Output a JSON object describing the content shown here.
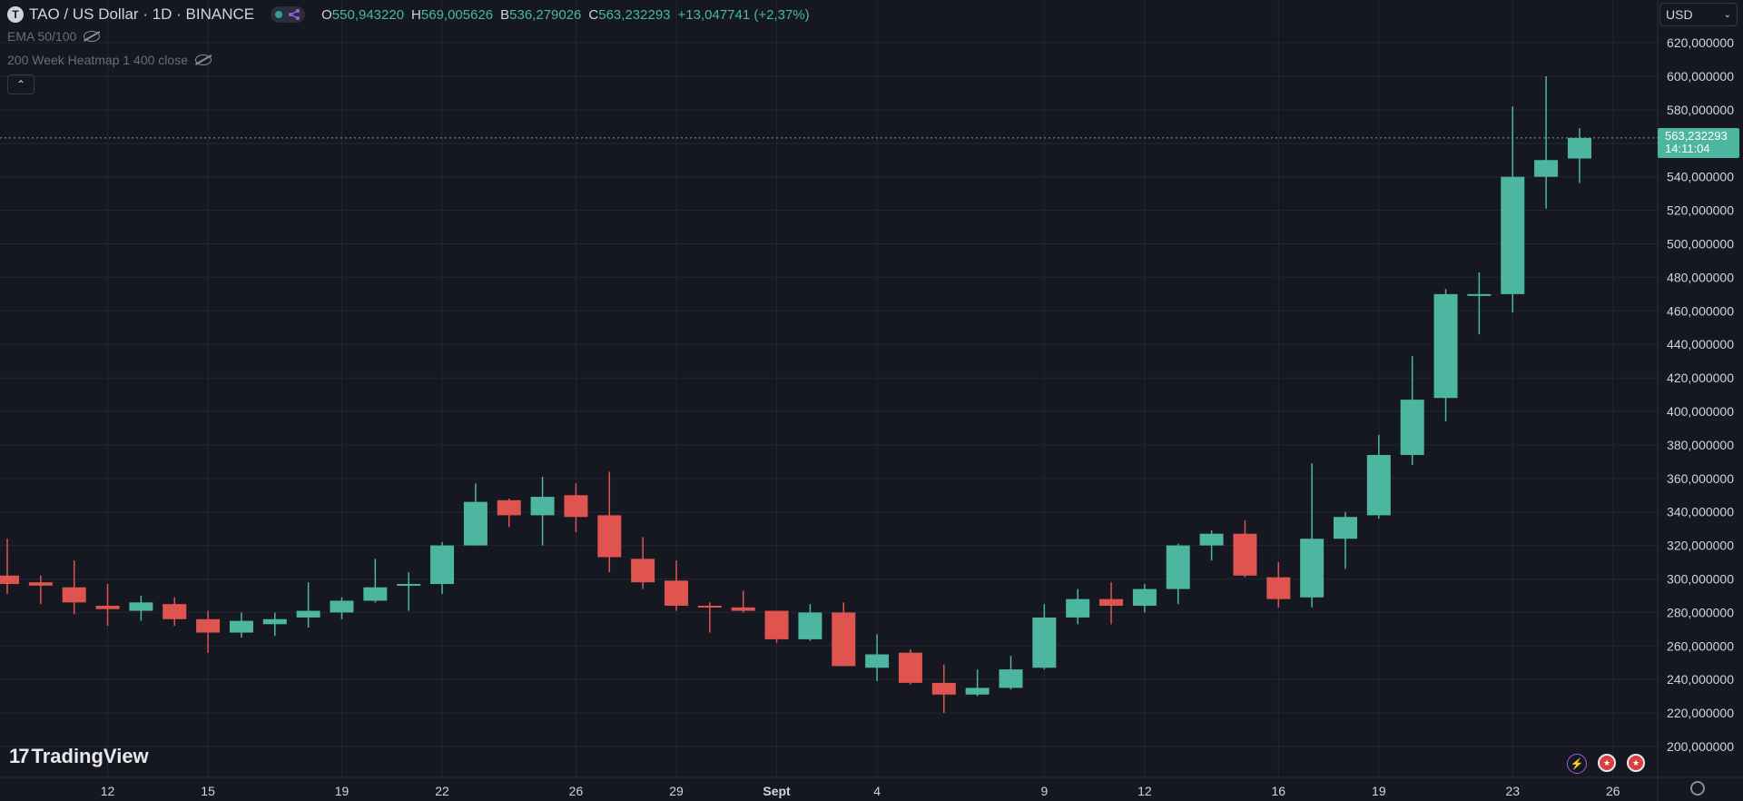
{
  "header": {
    "symbol_badge": "T",
    "title": "TAO / US Dollar · 1D · BINANCE",
    "ohlc": [
      {
        "k": "O",
        "v": "550,943220"
      },
      {
        "k": "H",
        "v": "569,005626"
      },
      {
        "k": "B",
        "v": "536,279026"
      },
      {
        "k": "C",
        "v": "563,232293"
      }
    ],
    "change": "+13,047741 (+2,37%)"
  },
  "indicators": [
    {
      "label": "EMA 50/100"
    },
    {
      "label": "200 Week Heatmap 1 400 close"
    }
  ],
  "currency_selector": {
    "value": "USD"
  },
  "last_price": {
    "value": "563,232293",
    "countdown": "14:11:04"
  },
  "branding": {
    "logo_text": "TradingView",
    "logo_mark": "17"
  },
  "colors": {
    "up": "#4db6a0",
    "down": "#e0544f",
    "background": "#151821",
    "grid": "#232632",
    "axis_text": "#d1d4dc"
  },
  "chart_data": {
    "type": "candlestick",
    "ylim": [
      190,
      625
    ],
    "y_ticks": [
      {
        "value": 200,
        "label": "200,000000"
      },
      {
        "value": 220,
        "label": "220,000000"
      },
      {
        "value": 240,
        "label": "240,000000"
      },
      {
        "value": 260,
        "label": "260,000000"
      },
      {
        "value": 280,
        "label": "280,000000"
      },
      {
        "value": 300,
        "label": "300,000000"
      },
      {
        "value": 320,
        "label": "320,000000"
      },
      {
        "value": 340,
        "label": "340,000000"
      },
      {
        "value": 360,
        "label": "360,000000"
      },
      {
        "value": 380,
        "label": "380,000000"
      },
      {
        "value": 400,
        "label": "400,000000"
      },
      {
        "value": 420,
        "label": "420,000000"
      },
      {
        "value": 440,
        "label": "440,000000"
      },
      {
        "value": 460,
        "label": "460,000000"
      },
      {
        "value": 480,
        "label": "480,000000"
      },
      {
        "value": 500,
        "label": "500,000000"
      },
      {
        "value": 520,
        "label": "520,000000"
      },
      {
        "value": 540,
        "label": "540,000000"
      },
      {
        "value": 560,
        "label": "560,000000"
      },
      {
        "value": 580,
        "label": "580,000000"
      },
      {
        "value": 600,
        "label": "600,000000"
      },
      {
        "value": 620,
        "label": "620,000000"
      }
    ],
    "x_ticks": [
      {
        "day": "Aug 12",
        "label": "12"
      },
      {
        "day": "Aug 15",
        "label": "15"
      },
      {
        "day": "Aug 19",
        "label": "19"
      },
      {
        "day": "Aug 22",
        "label": "22"
      },
      {
        "day": "Aug 26",
        "label": "26"
      },
      {
        "day": "Aug 29",
        "label": "29"
      },
      {
        "day": "Sep 1",
        "label": "Sept",
        "bold": true
      },
      {
        "day": "Sep 4",
        "label": "4"
      },
      {
        "day": "Sep 9",
        "label": "9"
      },
      {
        "day": "Sep 12",
        "label": "12"
      },
      {
        "day": "Sep 16",
        "label": "16"
      },
      {
        "day": "Sep 19",
        "label": "19"
      },
      {
        "day": "Sep 23",
        "label": "23"
      },
      {
        "day": "Sep 26",
        "label": "26"
      }
    ],
    "last_price": 563.23,
    "candles": [
      {
        "date": "Aug 9",
        "o": 302,
        "h": 324,
        "l": 291,
        "c": 297
      },
      {
        "date": "Aug 10",
        "o": 298,
        "h": 302,
        "l": 285,
        "c": 296
      },
      {
        "date": "Aug 11",
        "o": 295,
        "h": 311,
        "l": 279,
        "c": 286
      },
      {
        "date": "Aug 12",
        "o": 284,
        "h": 297,
        "l": 272,
        "c": 282
      },
      {
        "date": "Aug 13",
        "o": 281,
        "h": 290,
        "l": 275,
        "c": 286
      },
      {
        "date": "Aug 14",
        "o": 285,
        "h": 289,
        "l": 272,
        "c": 276
      },
      {
        "date": "Aug 15",
        "o": 276,
        "h": 281,
        "l": 256,
        "c": 268
      },
      {
        "date": "Aug 16",
        "o": 268,
        "h": 280,
        "l": 265,
        "c": 275
      },
      {
        "date": "Aug 17",
        "o": 273,
        "h": 280,
        "l": 266,
        "c": 276
      },
      {
        "date": "Aug 18",
        "o": 277,
        "h": 298,
        "l": 271,
        "c": 281
      },
      {
        "date": "Aug 19",
        "o": 280,
        "h": 289,
        "l": 276,
        "c": 287
      },
      {
        "date": "Aug 20",
        "o": 287,
        "h": 312,
        "l": 286,
        "c": 295
      },
      {
        "date": "Aug 21",
        "o": 296,
        "h": 304,
        "l": 281,
        "c": 297
      },
      {
        "date": "Aug 22",
        "o": 297,
        "h": 322,
        "l": 291,
        "c": 320
      },
      {
        "date": "Aug 23",
        "o": 320,
        "h": 357,
        "l": 320,
        "c": 346
      },
      {
        "date": "Aug 24",
        "o": 347,
        "h": 348,
        "l": 331,
        "c": 338
      },
      {
        "date": "Aug 25",
        "o": 338,
        "h": 361,
        "l": 320,
        "c": 349
      },
      {
        "date": "Aug 26",
        "o": 350,
        "h": 357,
        "l": 328,
        "c": 337
      },
      {
        "date": "Aug 27",
        "o": 338,
        "h": 364,
        "l": 304,
        "c": 313
      },
      {
        "date": "Aug 28",
        "o": 312,
        "h": 325,
        "l": 294,
        "c": 298
      },
      {
        "date": "Aug 29",
        "o": 299,
        "h": 311,
        "l": 281,
        "c": 284
      },
      {
        "date": "Aug 30",
        "o": 284,
        "h": 286,
        "l": 268,
        "c": 283
      },
      {
        "date": "Aug 31",
        "o": 283,
        "h": 293,
        "l": 280,
        "c": 281
      },
      {
        "date": "Sep 1",
        "o": 281,
        "h": 281,
        "l": 262,
        "c": 264
      },
      {
        "date": "Sep 2",
        "o": 264,
        "h": 285,
        "l": 263,
        "c": 280
      },
      {
        "date": "Sep 3",
        "o": 280,
        "h": 286,
        "l": 248,
        "c": 248
      },
      {
        "date": "Sep 4",
        "o": 247,
        "h": 267,
        "l": 239,
        "c": 255
      },
      {
        "date": "Sep 5",
        "o": 256,
        "h": 258,
        "l": 237,
        "c": 238
      },
      {
        "date": "Sep 6",
        "o": 238,
        "h": 249,
        "l": 220,
        "c": 231
      },
      {
        "date": "Sep 7",
        "o": 231,
        "h": 246,
        "l": 230,
        "c": 235
      },
      {
        "date": "Sep 8",
        "o": 235,
        "h": 254,
        "l": 234,
        "c": 246
      },
      {
        "date": "Sep 9",
        "o": 247,
        "h": 285,
        "l": 246,
        "c": 277
      },
      {
        "date": "Sep 10",
        "o": 277,
        "h": 294,
        "l": 273,
        "c": 288
      },
      {
        "date": "Sep 11",
        "o": 288,
        "h": 298,
        "l": 273,
        "c": 284
      },
      {
        "date": "Sep 12",
        "o": 284,
        "h": 297,
        "l": 280,
        "c": 294
      },
      {
        "date": "Sep 13",
        "o": 294,
        "h": 321,
        "l": 285,
        "c": 320
      },
      {
        "date": "Sep 14",
        "o": 320,
        "h": 329,
        "l": 311,
        "c": 327
      },
      {
        "date": "Sep 15",
        "o": 327,
        "h": 335,
        "l": 301,
        "c": 302
      },
      {
        "date": "Sep 16",
        "o": 301,
        "h": 310,
        "l": 283,
        "c": 288
      },
      {
        "date": "Sep 17",
        "o": 289,
        "h": 369,
        "l": 283,
        "c": 324
      },
      {
        "date": "Sep 18",
        "o": 324,
        "h": 340,
        "l": 306,
        "c": 337
      },
      {
        "date": "Sep 19",
        "o": 338,
        "h": 386,
        "l": 336,
        "c": 374
      },
      {
        "date": "Sep 20",
        "o": 374,
        "h": 433,
        "l": 368,
        "c": 407
      },
      {
        "date": "Sep 21",
        "o": 408,
        "h": 473,
        "l": 394,
        "c": 470
      },
      {
        "date": "Sep 22",
        "o": 469,
        "h": 483,
        "l": 446,
        "c": 470
      },
      {
        "date": "Sep 23",
        "o": 470,
        "h": 582,
        "l": 459,
        "c": 540
      },
      {
        "date": "Sep 24",
        "o": 540,
        "h": 600,
        "l": 521,
        "c": 550
      },
      {
        "date": "Sep 25",
        "o": 550.94,
        "h": 569.01,
        "l": 536.28,
        "c": 563.23
      }
    ]
  }
}
